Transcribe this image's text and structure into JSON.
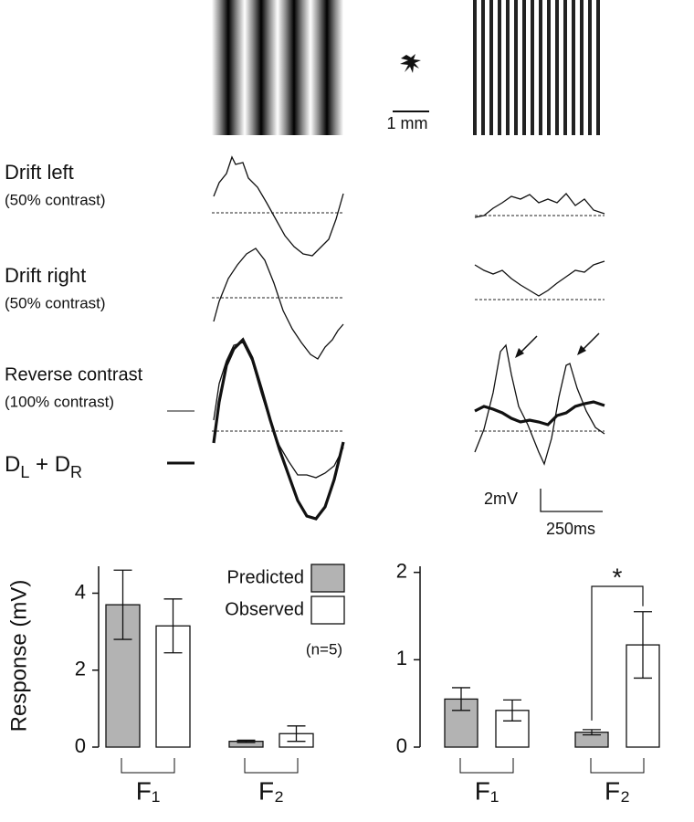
{
  "labels": {
    "scale_mm": "1 mm",
    "drift_left": "Drift left",
    "drift_left_contrast": "(50% contrast)",
    "drift_right": "Drift right",
    "drift_right_contrast": "(50% contrast)",
    "reverse": "Reverse contrast",
    "reverse_contrast": "(100% contrast)",
    "sum": [
      "D",
      "L",
      " + D",
      "R"
    ],
    "scale_mv": "2mV",
    "scale_ms": "250ms"
  },
  "chart_data": [
    {
      "type": "bar",
      "ylabel": "Response (mV)",
      "categories": [
        "F₁",
        "F₂"
      ],
      "series": [
        {
          "name": "Predicted",
          "color": "#b3b3b3",
          "values": [
            3.7,
            0.15
          ],
          "errors": [
            0.9,
            0.03
          ]
        },
        {
          "name": "Observed",
          "color": "#ffffff",
          "values": [
            3.15,
            0.35
          ],
          "errors": [
            0.7,
            0.2
          ]
        }
      ],
      "ylim": [
        0,
        4.7
      ],
      "yticks": [
        0,
        2,
        4
      ],
      "legend": true,
      "note": "(n=5)"
    },
    {
      "type": "bar",
      "categories": [
        "F₁",
        "F₂"
      ],
      "series": [
        {
          "name": "Predicted",
          "color": "#b3b3b3",
          "values": [
            0.55,
            0.17
          ],
          "errors": [
            0.13,
            0.03
          ]
        },
        {
          "name": "Observed",
          "color": "#ffffff",
          "values": [
            0.42,
            1.17
          ],
          "errors": [
            0.12,
            0.38
          ]
        }
      ],
      "ylim": [
        0,
        2.07
      ],
      "yticks": [
        0,
        1,
        2
      ],
      "legend": false,
      "annotation": "*"
    }
  ]
}
